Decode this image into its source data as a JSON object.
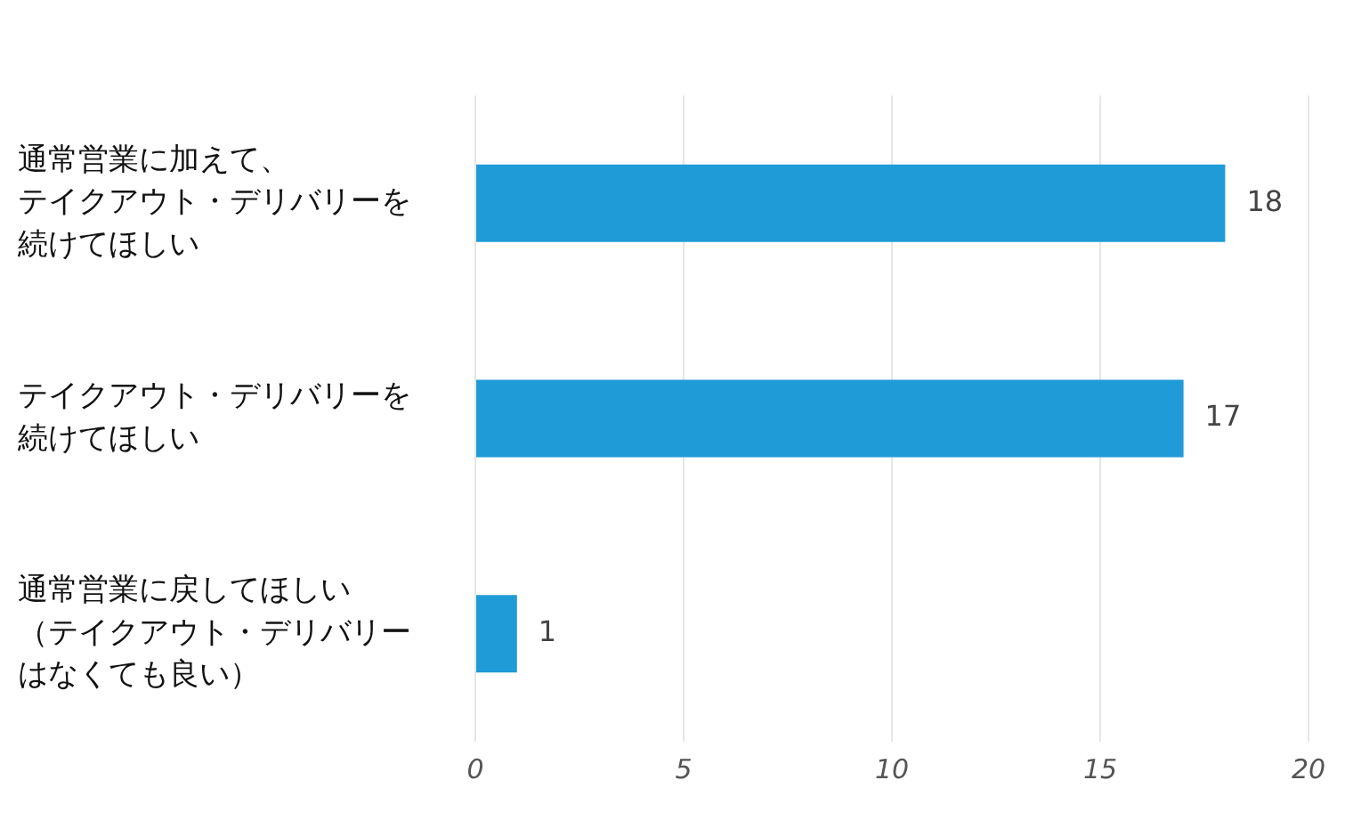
{
  "chart_data": {
    "type": "bar",
    "orientation": "horizontal",
    "categories": [
      "通常営業に加えて、テイクアウト・デリバリーを続けてほしい",
      "テイクアウト・デリバリーを続けてほしい",
      "通常営業に戻してほしい（テイクアウト・デリバリーはなくても良い）"
    ],
    "values": [
      18,
      17,
      1
    ],
    "color": "#1f9bd7",
    "xlim": [
      0,
      20
    ],
    "xticks": [
      0,
      5,
      10,
      15,
      20
    ],
    "grid": "x",
    "data_labels": true,
    "legend": false
  }
}
